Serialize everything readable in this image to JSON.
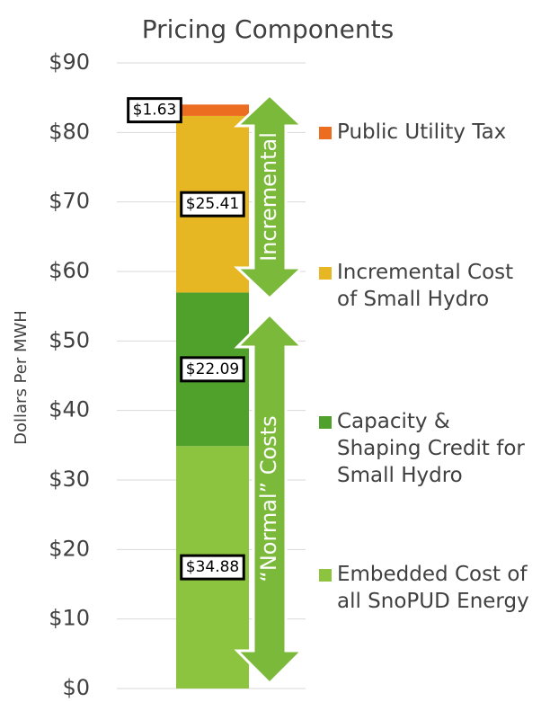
{
  "chart_data": {
    "type": "stacked_bar",
    "title": "Pricing Components",
    "ylabel": "Dollars Per MWH",
    "categories": [
      null
    ],
    "series": [
      {
        "name": "Embedded Cost of all SnoPUD Energy",
        "color": "#8cc43f",
        "values": [
          34.88
        ],
        "value_labels": [
          "$34.88"
        ]
      },
      {
        "name": "Capacity & Shaping Credit for Small Hydro",
        "color": "#50a02c",
        "values": [
          22.09
        ],
        "value_labels": [
          "$22.09"
        ]
      },
      {
        "name": "Incremental Cost of Small Hydro",
        "color": "#e7b723",
        "values": [
          25.41
        ],
        "value_labels": [
          "$25.41"
        ]
      },
      {
        "name": "Public Utility Tax",
        "color": "#ec6d1f",
        "values": [
          1.63
        ],
        "value_labels": [
          "$1.63"
        ]
      }
    ],
    "ylim": [
      0,
      90
    ],
    "yticks": [
      {
        "value": 0,
        "label": "$0"
      },
      {
        "value": 10,
        "label": "$10"
      },
      {
        "value": 20,
        "label": "$20"
      },
      {
        "value": 30,
        "label": "$30"
      },
      {
        "value": 40,
        "label": "$40"
      },
      {
        "value": 50,
        "label": "$50"
      },
      {
        "value": 60,
        "label": "$60"
      },
      {
        "value": 70,
        "label": "$70"
      },
      {
        "value": 80,
        "label": "$80"
      },
      {
        "value": 90,
        "label": "$90"
      }
    ],
    "grid": true,
    "annotations": [
      "Incremental",
      "“Normal” Costs"
    ]
  }
}
